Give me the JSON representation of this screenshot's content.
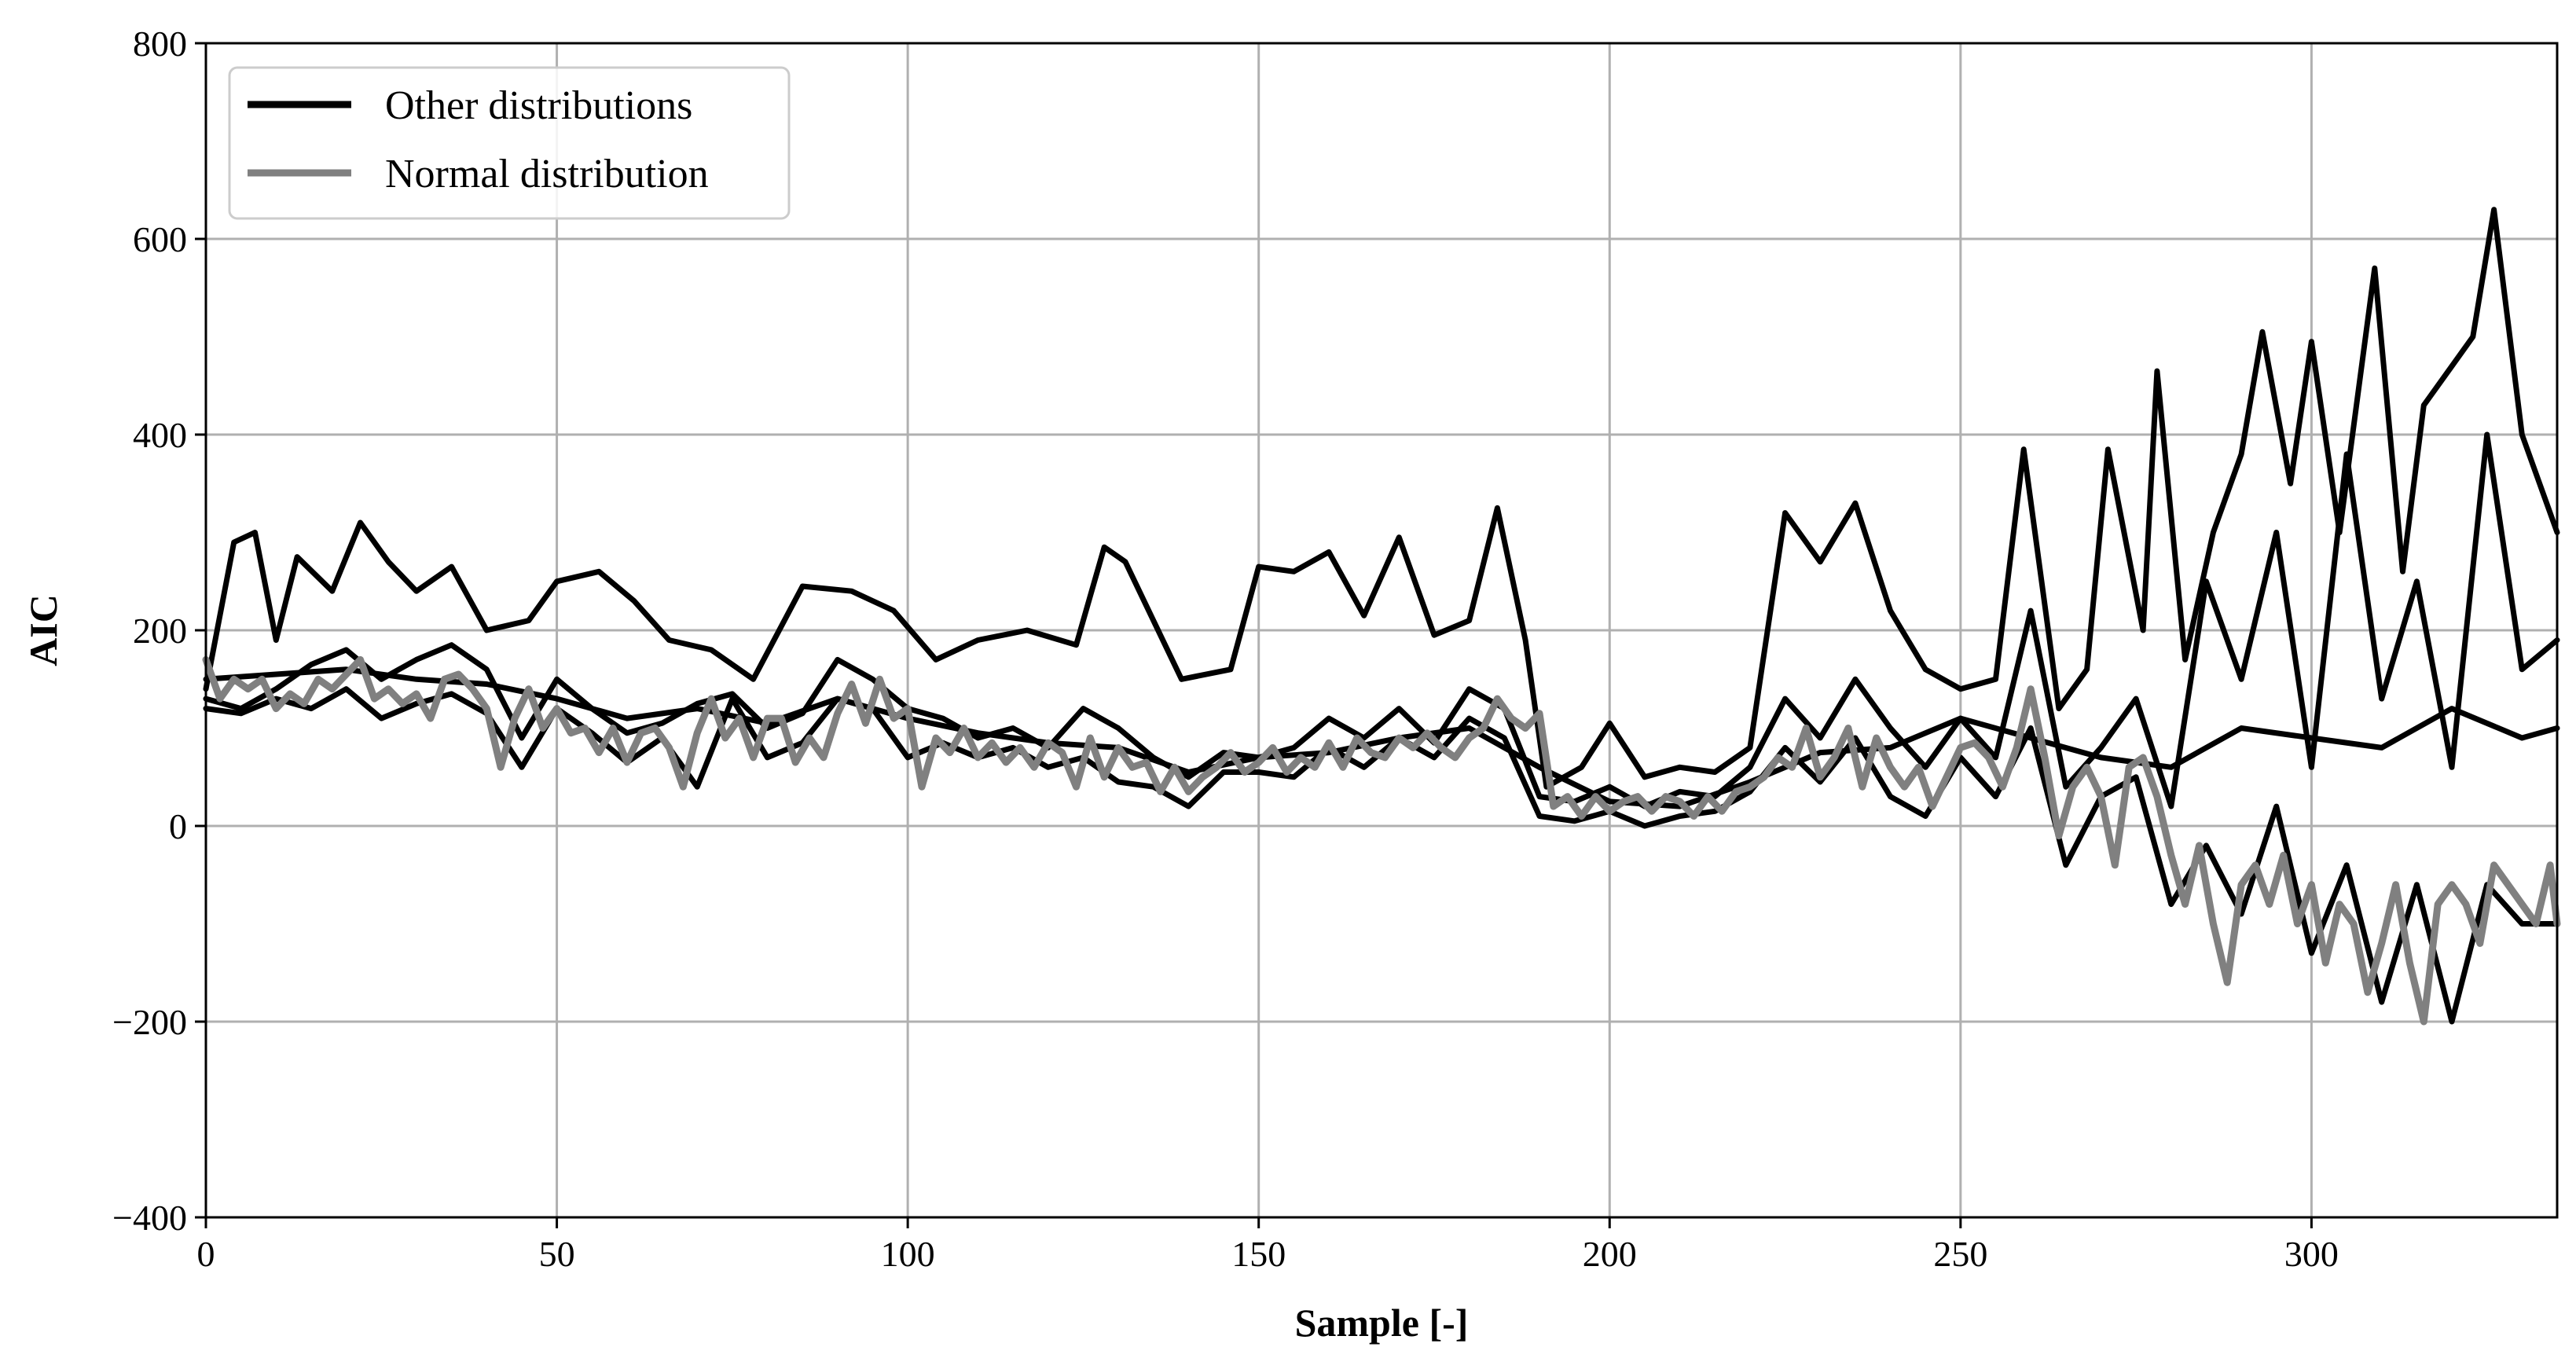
{
  "chart_data": {
    "type": "line",
    "title": "",
    "xlabel": "Sample [-]",
    "ylabel": "AIC",
    "xlim": [
      0,
      335
    ],
    "ylim": [
      -400,
      800
    ],
    "xticks": [
      0,
      50,
      100,
      150,
      200,
      250,
      300
    ],
    "xtick_labels": [
      "0",
      "50",
      "100",
      "150",
      "200",
      "250",
      "300"
    ],
    "yticks": [
      -400,
      -200,
      0,
      200,
      400,
      600,
      800
    ],
    "ytick_labels": [
      "−400",
      "−200",
      "0",
      "200",
      "400",
      "600",
      "800"
    ],
    "grid": true,
    "legend": {
      "placement": "top-left",
      "entries": [
        {
          "label": "Other distributions",
          "color": "#000000"
        },
        {
          "label": "Normal distribution",
          "color": "#808080"
        }
      ]
    },
    "series": [
      {
        "name": "Other distributions",
        "color": "#000000",
        "x": [
          0,
          10,
          20,
          30,
          40,
          50,
          60,
          70,
          80,
          90,
          100,
          110,
          120,
          130,
          140,
          150,
          160,
          170,
          180,
          190,
          200,
          210,
          220,
          230,
          240,
          250,
          260,
          270,
          280,
          290,
          300,
          310,
          320,
          330,
          335
        ],
        "y": [
          150,
          155,
          160,
          150,
          145,
          130,
          110,
          120,
          105,
          130,
          110,
          95,
          85,
          80,
          55,
          70,
          75,
          90,
          100,
          60,
          25,
          20,
          45,
          75,
          80,
          110,
          90,
          70,
          60,
          100,
          90,
          80,
          120,
          90,
          100
        ]
      },
      {
        "name": "Other distributions",
        "color": "#000000",
        "x": [
          0,
          4,
          7,
          10,
          13,
          18,
          22,
          26,
          30,
          35,
          40,
          46,
          50,
          56,
          61,
          66,
          72,
          78,
          85,
          92,
          98,
          104,
          110,
          117,
          124,
          128,
          131,
          139,
          146,
          150,
          155,
          160,
          165,
          170,
          175,
          180,
          184,
          188,
          191,
          196,
          200,
          205,
          210,
          215,
          220,
          225,
          230,
          235,
          240,
          245,
          250,
          255,
          259,
          264,
          268,
          271,
          276,
          278,
          282,
          286,
          290,
          293,
          297,
          300,
          304,
          309,
          313,
          316,
          320,
          323,
          326,
          330,
          335
        ],
        "y": [
          140,
          290,
          300,
          190,
          275,
          240,
          310,
          270,
          240,
          265,
          200,
          210,
          250,
          260,
          230,
          190,
          180,
          150,
          245,
          240,
          220,
          170,
          190,
          200,
          185,
          285,
          270,
          150,
          160,
          265,
          260,
          280,
          215,
          295,
          195,
          210,
          325,
          190,
          40,
          60,
          105,
          50,
          60,
          55,
          80,
          320,
          270,
          330,
          220,
          160,
          140,
          150,
          385,
          120,
          160,
          385,
          200,
          465,
          170,
          300,
          380,
          505,
          350,
          495,
          300,
          570,
          260,
          430,
          470,
          500,
          630,
          400,
          300
        ]
      },
      {
        "name": "Other distributions",
        "color": "#000000",
        "x": [
          0,
          5,
          10,
          15,
          20,
          25,
          30,
          35,
          40,
          45,
          50,
          55,
          60,
          65,
          70,
          75,
          80,
          85,
          90,
          95,
          100,
          105,
          110,
          115,
          120,
          125,
          130,
          135,
          140,
          145,
          150,
          155,
          160,
          165,
          170,
          175,
          180,
          185,
          190,
          195,
          200,
          205,
          210,
          215,
          220,
          225,
          230,
          235,
          240,
          245,
          250,
          255,
          260,
          265,
          270,
          275,
          280,
          285,
          290,
          295,
          300,
          305,
          310,
          315,
          320,
          325,
          330,
          335
        ],
        "y": [
          130,
          120,
          140,
          165,
          180,
          150,
          170,
          185,
          160,
          90,
          150,
          120,
          95,
          105,
          125,
          135,
          100,
          115,
          170,
          150,
          120,
          110,
          90,
          100,
          80,
          120,
          100,
          70,
          50,
          75,
          70,
          80,
          110,
          90,
          120,
          85,
          140,
          120,
          30,
          25,
          40,
          20,
          35,
          30,
          60,
          130,
          90,
          150,
          100,
          60,
          110,
          70,
          220,
          40,
          80,
          130,
          20,
          250,
          150,
          300,
          60,
          380,
          130,
          250,
          60,
          400,
          160,
          190
        ]
      },
      {
        "name": "Other distributions",
        "color": "#000000",
        "x": [
          0,
          5,
          10,
          15,
          20,
          25,
          30,
          35,
          40,
          45,
          50,
          55,
          60,
          65,
          70,
          75,
          80,
          85,
          90,
          95,
          100,
          105,
          110,
          115,
          120,
          125,
          130,
          135,
          140,
          145,
          150,
          155,
          160,
          165,
          170,
          175,
          180,
          185,
          190,
          195,
          200,
          205,
          210,
          215,
          220,
          225,
          230,
          235,
          240,
          245,
          250,
          255,
          260,
          265,
          270,
          275,
          280,
          285,
          290,
          295,
          300,
          305,
          310,
          315,
          320,
          325,
          330,
          335
        ],
        "y": [
          120,
          115,
          130,
          120,
          140,
          110,
          125,
          135,
          115,
          60,
          120,
          95,
          65,
          90,
          40,
          130,
          70,
          85,
          130,
          120,
          70,
          85,
          70,
          80,
          60,
          70,
          45,
          40,
          20,
          55,
          55,
          50,
          80,
          60,
          90,
          70,
          110,
          90,
          10,
          5,
          15,
          0,
          10,
          15,
          35,
          80,
          45,
          90,
          30,
          10,
          70,
          30,
          100,
          -40,
          30,
          50,
          -80,
          -20,
          -90,
          20,
          -130,
          -40,
          -180,
          -60,
          -200,
          -60,
          -100,
          -100
        ]
      },
      {
        "name": "Normal distribution",
        "color": "#808080",
        "x": [
          0,
          2,
          4,
          6,
          8,
          10,
          12,
          14,
          16,
          18,
          20,
          22,
          24,
          26,
          28,
          30,
          32,
          34,
          36,
          38,
          40,
          42,
          44,
          46,
          48,
          50,
          52,
          54,
          56,
          58,
          60,
          62,
          64,
          66,
          68,
          70,
          72,
          74,
          76,
          78,
          80,
          82,
          84,
          86,
          88,
          90,
          92,
          94,
          96,
          98,
          100,
          102,
          104,
          106,
          108,
          110,
          112,
          114,
          116,
          118,
          120,
          122,
          124,
          126,
          128,
          130,
          132,
          134,
          136,
          138,
          140,
          142,
          144,
          146,
          148,
          150,
          152,
          154,
          156,
          158,
          160,
          162,
          164,
          166,
          168,
          170,
          172,
          174,
          176,
          178,
          180,
          182,
          184,
          186,
          188,
          190,
          192,
          194,
          196,
          198,
          200,
          202,
          204,
          206,
          208,
          210,
          212,
          214,
          216,
          218,
          220,
          222,
          224,
          226,
          228,
          230,
          232,
          234,
          236,
          238,
          240,
          242,
          244,
          246,
          248,
          250,
          252,
          254,
          256,
          258,
          260,
          262,
          264,
          266,
          268,
          270,
          272,
          274,
          276,
          278,
          280,
          282,
          284,
          286,
          288,
          290,
          292,
          294,
          296,
          298,
          300,
          302,
          304,
          306,
          308,
          310,
          312,
          314,
          316,
          318,
          320,
          322,
          324,
          326,
          328,
          330,
          332,
          334,
          335
        ],
        "y": [
          170,
          130,
          150,
          140,
          150,
          120,
          135,
          125,
          150,
          140,
          155,
          170,
          130,
          140,
          125,
          135,
          110,
          150,
          155,
          140,
          120,
          60,
          110,
          140,
          100,
          120,
          95,
          100,
          75,
          100,
          65,
          95,
          100,
          80,
          40,
          95,
          130,
          90,
          110,
          70,
          110,
          110,
          65,
          90,
          70,
          115,
          145,
          105,
          150,
          110,
          120,
          40,
          90,
          75,
          100,
          70,
          85,
          65,
          80,
          60,
          85,
          75,
          40,
          90,
          50,
          80,
          60,
          65,
          35,
          60,
          35,
          50,
          60,
          75,
          55,
          65,
          80,
          55,
          70,
          60,
          85,
          60,
          90,
          75,
          70,
          90,
          80,
          95,
          80,
          70,
          90,
          100,
          130,
          110,
          100,
          115,
          20,
          30,
          10,
          30,
          15,
          25,
          30,
          15,
          30,
          25,
          10,
          30,
          15,
          35,
          40,
          50,
          70,
          60,
          100,
          50,
          70,
          100,
          40,
          90,
          60,
          40,
          60,
          20,
          50,
          80,
          85,
          70,
          40,
          80,
          140,
          70,
          -10,
          40,
          60,
          30,
          -40,
          60,
          70,
          30,
          -30,
          -80,
          -20,
          -100,
          -160,
          -60,
          -40,
          -80,
          -30,
          -100,
          -60,
          -140,
          -80,
          -100,
          -170,
          -120,
          -60,
          -140,
          -200,
          -80,
          -60,
          -80,
          -120,
          -40,
          -60,
          -80,
          -100,
          -40,
          -100
        ]
      }
    ]
  }
}
